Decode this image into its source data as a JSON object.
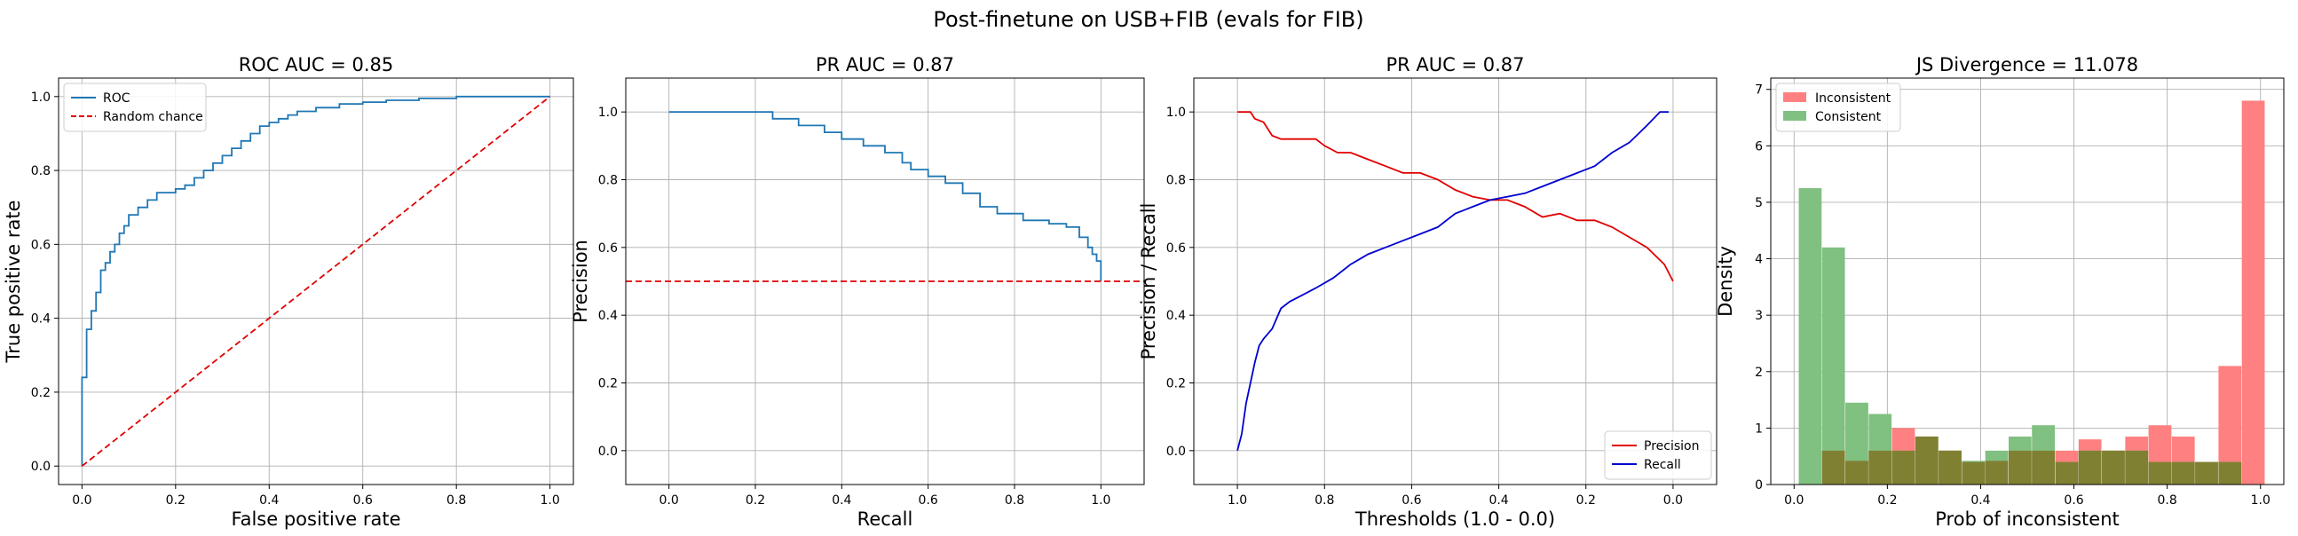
{
  "figure": {
    "title": "Post-finetune on USB+FIB (evals for FIB)"
  },
  "colors": {
    "roc": "#1f77b4",
    "chance": "#e00000",
    "pr": "#1f77b4",
    "precision": "#e00000",
    "recall": "#0000d0",
    "inconsistent": "#ff8080",
    "consistent": "#80c080",
    "overlap": "#808033",
    "grid": "#b0b0b0"
  },
  "chart_data": [
    {
      "type": "line",
      "title": "ROC AUC = 0.85",
      "xlabel": "False positive rate",
      "ylabel": "True positive rate",
      "xlim": [
        -0.05,
        1.05
      ],
      "ylim": [
        -0.05,
        1.05
      ],
      "xticks": [
        0.0,
        0.2,
        0.4,
        0.6,
        0.8,
        1.0
      ],
      "yticks": [
        0.0,
        0.2,
        0.4,
        0.6,
        0.8,
        1.0
      ],
      "tick_labels_x": [
        "0.0",
        "0.2",
        "0.4",
        "0.6",
        "0.8",
        "1.0"
      ],
      "tick_labels_y": [
        "0.0",
        "0.2",
        "0.4",
        "0.6",
        "0.8",
        "1.0"
      ],
      "grid": true,
      "legend": "upper left",
      "series": [
        {
          "name": "ROC",
          "style": "step",
          "x": [
            0.0,
            0.0,
            0.01,
            0.01,
            0.02,
            0.02,
            0.03,
            0.03,
            0.04,
            0.04,
            0.05,
            0.05,
            0.06,
            0.06,
            0.07,
            0.07,
            0.08,
            0.08,
            0.09,
            0.09,
            0.1,
            0.1,
            0.12,
            0.12,
            0.14,
            0.14,
            0.16,
            0.16,
            0.2,
            0.2,
            0.22,
            0.22,
            0.24,
            0.24,
            0.26,
            0.26,
            0.28,
            0.28,
            0.3,
            0.3,
            0.32,
            0.32,
            0.34,
            0.34,
            0.36,
            0.36,
            0.38,
            0.38,
            0.4,
            0.4,
            0.42,
            0.42,
            0.44,
            0.44,
            0.46,
            0.46,
            0.5,
            0.5,
            0.55,
            0.55,
            0.6,
            0.6,
            0.65,
            0.65,
            0.72,
            0.72,
            0.8,
            0.8,
            0.85,
            0.85,
            0.92,
            0.92,
            1.0
          ],
          "y": [
            0.0,
            0.24,
            0.24,
            0.37,
            0.37,
            0.42,
            0.42,
            0.47,
            0.47,
            0.53,
            0.53,
            0.55,
            0.55,
            0.58,
            0.58,
            0.6,
            0.6,
            0.63,
            0.63,
            0.65,
            0.65,
            0.68,
            0.68,
            0.7,
            0.7,
            0.72,
            0.72,
            0.74,
            0.74,
            0.75,
            0.75,
            0.76,
            0.76,
            0.78,
            0.78,
            0.8,
            0.8,
            0.82,
            0.82,
            0.84,
            0.84,
            0.86,
            0.86,
            0.88,
            0.88,
            0.9,
            0.9,
            0.92,
            0.92,
            0.93,
            0.93,
            0.94,
            0.94,
            0.95,
            0.95,
            0.96,
            0.96,
            0.97,
            0.97,
            0.98,
            0.98,
            0.985,
            0.985,
            0.99,
            0.99,
            0.995,
            0.995,
            1.0,
            1.0,
            1.0,
            1.0,
            1.0,
            1.0
          ]
        },
        {
          "name": "Random chance",
          "style": "dashed",
          "x": [
            0.0,
            1.0
          ],
          "y": [
            0.0,
            1.0
          ]
        }
      ]
    },
    {
      "type": "line",
      "title": "PR AUC = 0.87",
      "xlabel": "Recall",
      "ylabel": "Precision",
      "xlim": [
        -0.1,
        1.1
      ],
      "ylim": [
        -0.1,
        1.1
      ],
      "xticks": [
        0.0,
        0.2,
        0.4,
        0.6,
        0.8,
        1.0
      ],
      "yticks": [
        0.0,
        0.2,
        0.4,
        0.6,
        0.8,
        1.0
      ],
      "tick_labels_x": [
        "0.0",
        "0.2",
        "0.4",
        "0.6",
        "0.8",
        "1.0"
      ],
      "tick_labels_y": [
        "0.0",
        "0.2",
        "0.4",
        "0.6",
        "0.8",
        "1.0"
      ],
      "grid": true,
      "series": [
        {
          "style": "step",
          "x": [
            0.0,
            0.24,
            0.24,
            0.3,
            0.3,
            0.36,
            0.36,
            0.4,
            0.4,
            0.45,
            0.45,
            0.5,
            0.5,
            0.54,
            0.54,
            0.56,
            0.56,
            0.6,
            0.6,
            0.64,
            0.64,
            0.68,
            0.68,
            0.72,
            0.72,
            0.76,
            0.76,
            0.82,
            0.82,
            0.88,
            0.88,
            0.92,
            0.92,
            0.95,
            0.95,
            0.97,
            0.97,
            0.98,
            0.98,
            0.99,
            0.99,
            1.0,
            1.0
          ],
          "y": [
            1.0,
            1.0,
            0.98,
            0.98,
            0.96,
            0.96,
            0.94,
            0.94,
            0.92,
            0.92,
            0.9,
            0.9,
            0.88,
            0.88,
            0.85,
            0.85,
            0.83,
            0.83,
            0.81,
            0.81,
            0.79,
            0.79,
            0.76,
            0.76,
            0.72,
            0.72,
            0.7,
            0.7,
            0.68,
            0.68,
            0.67,
            0.67,
            0.66,
            0.66,
            0.63,
            0.63,
            0.6,
            0.6,
            0.58,
            0.58,
            0.56,
            0.56,
            0.5
          ]
        },
        {
          "style": "dashed",
          "color": "chance",
          "x": [
            -0.1,
            1.1
          ],
          "y": [
            0.5,
            0.5
          ]
        }
      ]
    },
    {
      "type": "line",
      "title": "PR AUC = 0.87",
      "xlabel": "Thresholds (1.0 - 0.0)",
      "ylabel": "Precision / Recall",
      "xlim": [
        1.1,
        -0.1
      ],
      "ylim": [
        -0.1,
        1.1
      ],
      "xticks": [
        1.0,
        0.8,
        0.6,
        0.4,
        0.2,
        0.0
      ],
      "yticks": [
        0.0,
        0.2,
        0.4,
        0.6,
        0.8,
        1.0
      ],
      "tick_labels_x": [
        "1.0",
        "0.8",
        "0.6",
        "0.4",
        "0.2",
        "0.0"
      ],
      "tick_labels_y": [
        "0.0",
        "0.2",
        "0.4",
        "0.6",
        "0.8",
        "1.0"
      ],
      "grid": true,
      "legend": "lower right",
      "series": [
        {
          "name": "Precision",
          "x": [
            1.0,
            0.97,
            0.96,
            0.94,
            0.92,
            0.9,
            0.86,
            0.82,
            0.8,
            0.77,
            0.74,
            0.7,
            0.66,
            0.62,
            0.58,
            0.54,
            0.5,
            0.46,
            0.42,
            0.38,
            0.34,
            0.3,
            0.26,
            0.22,
            0.18,
            0.14,
            0.1,
            0.06,
            0.02,
            0.0
          ],
          "y": [
            1.0,
            1.0,
            0.98,
            0.97,
            0.93,
            0.92,
            0.92,
            0.92,
            0.9,
            0.88,
            0.88,
            0.86,
            0.84,
            0.82,
            0.82,
            0.8,
            0.77,
            0.75,
            0.74,
            0.74,
            0.72,
            0.69,
            0.7,
            0.68,
            0.68,
            0.66,
            0.63,
            0.6,
            0.55,
            0.5
          ]
        },
        {
          "name": "Recall",
          "x": [
            1.0,
            0.99,
            0.98,
            0.97,
            0.96,
            0.95,
            0.94,
            0.92,
            0.9,
            0.88,
            0.85,
            0.82,
            0.78,
            0.74,
            0.7,
            0.66,
            0.62,
            0.58,
            0.54,
            0.5,
            0.46,
            0.42,
            0.38,
            0.34,
            0.3,
            0.26,
            0.22,
            0.18,
            0.14,
            0.1,
            0.06,
            0.03,
            0.01
          ],
          "y": [
            0.0,
            0.05,
            0.14,
            0.2,
            0.26,
            0.31,
            0.33,
            0.36,
            0.42,
            0.44,
            0.46,
            0.48,
            0.51,
            0.55,
            0.58,
            0.6,
            0.62,
            0.64,
            0.66,
            0.7,
            0.72,
            0.74,
            0.75,
            0.76,
            0.78,
            0.8,
            0.82,
            0.84,
            0.88,
            0.91,
            0.96,
            1.0,
            1.0
          ]
        }
      ]
    },
    {
      "type": "bar",
      "title": "JS Divergence = 11.078",
      "xlabel": "Prob of inconsistent",
      "ylabel": "Density",
      "xlim": [
        -0.05,
        1.05
      ],
      "ylim": [
        0,
        7.2
      ],
      "xticks": [
        0.0,
        0.2,
        0.4,
        0.6,
        0.8,
        1.0
      ],
      "yticks": [
        0,
        1,
        2,
        3,
        4,
        5,
        6,
        7
      ],
      "tick_labels_x": [
        "0.0",
        "0.2",
        "0.4",
        "0.6",
        "0.8",
        "1.0"
      ],
      "tick_labels_y": [
        "0",
        "1",
        "2",
        "3",
        "4",
        "5",
        "6",
        "7"
      ],
      "grid": true,
      "legend": "upper left",
      "bin_width": 0.049,
      "series": [
        {
          "name": "Inconsistent",
          "bins": [
            0.06,
            0.11,
            0.16,
            0.21,
            0.26,
            0.31,
            0.36,
            0.41,
            0.46,
            0.51,
            0.56,
            0.61,
            0.66,
            0.71,
            0.76,
            0.81,
            0.86,
            0.91,
            0.96
          ],
          "values": [
            0.6,
            0.42,
            0.6,
            1.0,
            0.85,
            0.6,
            0.4,
            0.42,
            0.6,
            0.6,
            0.6,
            0.8,
            0.6,
            0.85,
            1.05,
            0.85,
            0.4,
            2.1,
            6.8
          ]
        },
        {
          "name": "Consistent",
          "bins": [
            0.01,
            0.06,
            0.11,
            0.16,
            0.21,
            0.26,
            0.31,
            0.36,
            0.41,
            0.46,
            0.51,
            0.56,
            0.61,
            0.66,
            0.71,
            0.76,
            0.81,
            0.86,
            0.91
          ],
          "values": [
            5.25,
            4.2,
            1.45,
            1.25,
            0.6,
            0.85,
            0.6,
            0.42,
            0.6,
            0.85,
            1.05,
            0.4,
            0.6,
            0.6,
            0.6,
            0.4,
            0.4,
            0.4,
            0.4
          ]
        }
      ]
    }
  ]
}
